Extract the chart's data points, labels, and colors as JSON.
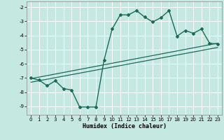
{
  "title": "",
  "xlabel": "Humidex (Indice chaleur)",
  "ylabel": "",
  "bg_color": "#c5e8e0",
  "line_color": "#1a6b5a",
  "grid_color": "#ffffff",
  "xlim": [
    -0.5,
    23.5
  ],
  "ylim": [
    -9.6,
    -1.6
  ],
  "yticks": [
    -9,
    -8,
    -7,
    -6,
    -5,
    -4,
    -3,
    -2
  ],
  "xticks": [
    0,
    1,
    2,
    3,
    4,
    5,
    6,
    7,
    8,
    9,
    10,
    11,
    12,
    13,
    14,
    15,
    16,
    17,
    18,
    19,
    20,
    21,
    22,
    23
  ],
  "curve1_x": [
    0,
    1,
    2,
    3,
    4,
    5,
    6,
    7,
    8,
    9,
    10,
    11,
    12,
    13,
    14,
    15,
    16,
    17,
    18,
    19,
    20,
    21,
    22,
    23
  ],
  "curve1_y": [
    -7.0,
    -7.15,
    -7.55,
    -7.2,
    -7.75,
    -7.85,
    -9.05,
    -9.05,
    -9.05,
    -5.75,
    -3.55,
    -2.55,
    -2.55,
    -2.25,
    -2.7,
    -3.05,
    -2.75,
    -2.25,
    -4.05,
    -3.65,
    -3.85,
    -3.55,
    -4.55,
    -4.6
  ],
  "line1_x": [
    0,
    23
  ],
  "line1_y": [
    -7.05,
    -4.55
  ],
  "line2_x": [
    0,
    23
  ],
  "line2_y": [
    -7.3,
    -4.85
  ],
  "figsize": [
    3.2,
    2.0
  ],
  "dpi": 100
}
